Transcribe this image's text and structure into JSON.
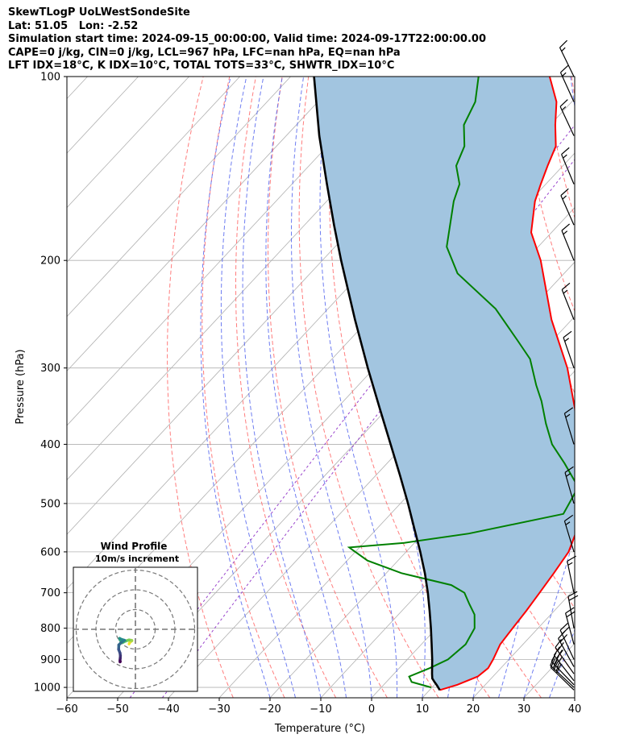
{
  "header": {
    "line1": "SkewTLogP UoLWestSondeSite",
    "line2": "Lat: 51.05   Lon: -2.52",
    "line3": "Simulation start time: 2024-09-15_00:00:00, Valid time: 2024-09-17T22:00:00.00",
    "line4": "CAPE=0 j/kg, CIN=0 j/kg, LCL=967 hPa, LFC=nan hPa, EQ=nan hPa",
    "line5": "LFT IDX=18$^\\circ$C, K IDX=10$^\\circ$C, TOTAL TOTS=33$^\\circ$C, SHWTR_IDX=10$^\\circ$C"
  },
  "chart_data": {
    "type": "line",
    "chart_kind": "skew-T log-P",
    "xlabel": "Temperature ($^\\circ$C)",
    "ylabel": "Pressure (hPa)",
    "xlim": [
      -60,
      40
    ],
    "ylim": [
      1040,
      100
    ],
    "y_scale": "log",
    "x_ticks": [
      -60,
      -50,
      -40,
      -30,
      -20,
      -10,
      0,
      10,
      20,
      30,
      40
    ],
    "y_ticks": [
      100,
      200,
      300,
      400,
      500,
      600,
      700,
      800,
      900,
      1000
    ],
    "grid": true,
    "colors": {
      "temperature": "#ff0000",
      "dewpoint": "#008000",
      "parcel": "#000000",
      "fill": "#a2c5e0",
      "dry_adiabats": "#ff6666",
      "moist_adiabats": "#5566ee",
      "mixing_ratio": "#9944cc",
      "isotherms": "#aaaaaa"
    },
    "series": [
      {
        "key": "temperature",
        "points": [
          [
            1010,
            12
          ],
          [
            990,
            14.5
          ],
          [
            960,
            17
          ],
          [
            930,
            17.5
          ],
          [
            900,
            16.9
          ],
          [
            850,
            15.5
          ],
          [
            800,
            15
          ],
          [
            750,
            14.5
          ],
          [
            700,
            13.8
          ],
          [
            650,
            13
          ],
          [
            600,
            12
          ],
          [
            550,
            9.5
          ],
          [
            500,
            5
          ],
          [
            450,
            0
          ],
          [
            400,
            -6
          ],
          [
            350,
            -13
          ],
          [
            300,
            -22
          ],
          [
            250,
            -34
          ],
          [
            200,
            -47
          ],
          [
            180,
            -54
          ],
          [
            160,
            -59
          ],
          [
            150,
            -61
          ],
          [
            140,
            -63
          ],
          [
            130,
            -65
          ],
          [
            120,
            -69
          ],
          [
            110,
            -73
          ],
          [
            100,
            -79
          ]
        ]
      },
      {
        "key": "dewpoint",
        "points": [
          [
            1000,
            9.8
          ],
          [
            980,
            5
          ],
          [
            960,
            3.5
          ],
          [
            930,
            6
          ],
          [
            900,
            8
          ],
          [
            850,
            8.7
          ],
          [
            800,
            7.5
          ],
          [
            760,
            5
          ],
          [
            730,
            2
          ],
          [
            700,
            -1
          ],
          [
            680,
            -5
          ],
          [
            650,
            -17
          ],
          [
            620,
            -26
          ],
          [
            595,
            -31
          ],
          [
            590,
            -32
          ],
          [
            580,
            -22
          ],
          [
            560,
            -11
          ],
          [
            520,
            4
          ],
          [
            470,
            2
          ],
          [
            430,
            -5
          ],
          [
            400,
            -11
          ],
          [
            370,
            -16
          ],
          [
            340,
            -21
          ],
          [
            320,
            -25
          ],
          [
            290,
            -31
          ],
          [
            270,
            -37
          ],
          [
            240,
            -47
          ],
          [
            210,
            -61
          ],
          [
            190,
            -68
          ],
          [
            160,
            -75
          ],
          [
            150,
            -77
          ],
          [
            140,
            -81
          ],
          [
            130,
            -83
          ],
          [
            120,
            -87
          ],
          [
            110,
            -89
          ],
          [
            100,
            -93
          ]
        ]
      },
      {
        "key": "parcel",
        "points": [
          [
            1010,
            12.0
          ],
          [
            1000,
            11.2
          ],
          [
            990,
            10.4
          ],
          [
            980,
            9.5
          ],
          [
            967,
            8.4
          ],
          [
            950,
            7.5
          ],
          [
            900,
            4.9
          ],
          [
            850,
            2.0
          ],
          [
            800,
            -1.1
          ],
          [
            750,
            -4.5
          ],
          [
            700,
            -8.2
          ],
          [
            650,
            -12.4
          ],
          [
            600,
            -17.2
          ],
          [
            550,
            -22.6
          ],
          [
            500,
            -28.5
          ],
          [
            450,
            -35.2
          ],
          [
            400,
            -42.8
          ],
          [
            350,
            -51.4
          ],
          [
            300,
            -61.3
          ],
          [
            250,
            -72.7
          ],
          [
            200,
            -86.3
          ],
          [
            175,
            -94.2
          ],
          [
            150,
            -103.1
          ],
          [
            125,
            -113.5
          ],
          [
            100,
            -125.4
          ]
        ]
      }
    ],
    "dry_adiabats_theta_c": [
      -30,
      -20,
      -10,
      0,
      10,
      20,
      30,
      40,
      50,
      60,
      70,
      80,
      90,
      100,
      110,
      120,
      130,
      140,
      150,
      160,
      170
    ],
    "moist_adiabats_start_c": [
      -20,
      -15,
      -10,
      -5,
      0,
      5,
      10,
      15,
      20,
      25,
      30,
      35,
      40
    ],
    "mixing_ratio_lines_gkg": [
      0.05,
      0.1
    ],
    "wind_barbs": [
      {
        "p": 1010,
        "u": -10.4,
        "v": 10.1
      },
      {
        "p": 1000,
        "u": -10.1,
        "v": 9.4
      },
      {
        "p": 990,
        "u": -9.5,
        "v": 9.8
      },
      {
        "p": 975,
        "u": -8.2,
        "v": 10.5
      },
      {
        "p": 950,
        "u": -6.9,
        "v": 9.8
      },
      {
        "p": 925,
        "u": -5.1,
        "v": 9.2
      },
      {
        "p": 900,
        "u": -3.9,
        "v": 8.4
      },
      {
        "p": 850,
        "u": -2.5,
        "v": 9.3
      },
      {
        "p": 800,
        "u": -1.6,
        "v": 9.0
      },
      {
        "p": 700,
        "u": -1.8,
        "v": 8.5
      },
      {
        "p": 600,
        "u": -2.3,
        "v": 7.6
      },
      {
        "p": 500,
        "u": -2.0,
        "v": 7.0
      },
      {
        "p": 400,
        "u": -2.0,
        "v": 6.6
      },
      {
        "p": 300,
        "u": -2.3,
        "v": 6.7
      },
      {
        "p": 250,
        "u": -2.7,
        "v": 6.8
      },
      {
        "p": 200,
        "u": -3.0,
        "v": 7.4
      },
      {
        "p": 175,
        "u": -3.3,
        "v": 7.5
      },
      {
        "p": 150,
        "u": -3.0,
        "v": 7.2
      },
      {
        "p": 125,
        "u": -3.5,
        "v": 7.5
      },
      {
        "p": 110,
        "u": -3.4,
        "v": 7.5
      },
      {
        "p": 100,
        "u": -3.6,
        "v": 7.4
      }
    ],
    "hodograph": {
      "title": "Wind Profile",
      "subtitle": "10m/s increment",
      "rings_ms": [
        10,
        20,
        30
      ],
      "points_uv": [
        [
          -3.2,
          -7.4
        ],
        [
          -2.8,
          -6.6
        ],
        [
          -1.8,
          -5.8
        ],
        [
          -1.9,
          -5.6
        ],
        [
          -3.2,
          -5.4
        ],
        [
          -4.8,
          -5.9
        ],
        [
          -6.3,
          -6.6
        ],
        [
          -7.2,
          -5.8
        ],
        [
          -7.8,
          -5.3
        ],
        [
          -8.0,
          -4.6
        ],
        [
          -7.3,
          -5.0
        ],
        [
          -5.5,
          -5.6
        ],
        [
          -7.3,
          -6.8
        ],
        [
          -8.4,
          -7.9
        ],
        [
          -8.5,
          -10.2
        ],
        [
          -7.8,
          -12.0
        ],
        [
          -7.6,
          -13.4
        ],
        [
          -7.7,
          -14.7
        ],
        [
          -7.8,
          -15.8
        ],
        [
          -7.7,
          -16.4
        ],
        [
          -7.8,
          -16.5
        ]
      ]
    }
  }
}
